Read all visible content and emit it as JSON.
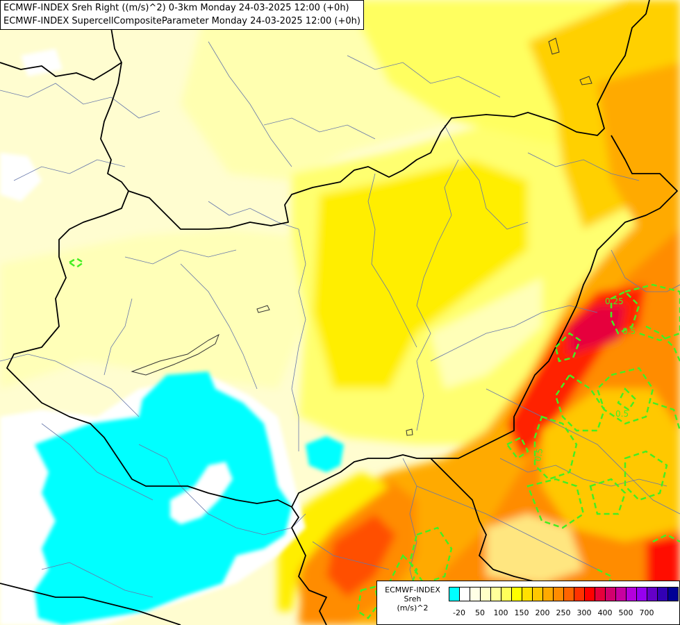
{
  "header": {
    "line1": "ECMWF-INDEX Sreh Right ((m/s)^2) 0-3km Monday 24-03-2025 12:00 (+0h)",
    "line2": "ECMWF-INDEX SupercellCompositeParameter Monday 24-03-2025 12:00 (+0h)"
  },
  "legend": {
    "title1": "ECMWF-INDEX",
    "title2": "Sreh",
    "title3": "(m/s)^2",
    "colors": [
      "#00ffff",
      "#ffffff",
      "#ffffe6",
      "#ffffc8",
      "#ffff9a",
      "#ffff5a",
      "#ffff00",
      "#ffe100",
      "#ffc800",
      "#ffaa00",
      "#ff8c00",
      "#ff6400",
      "#ff3200",
      "#ff0000",
      "#e6003c",
      "#d2006e",
      "#c800a0",
      "#b400dc",
      "#9600f0",
      "#6400c8",
      "#3200b4",
      "#000096"
    ],
    "ticks": [
      "-20",
      "50",
      "100",
      "150",
      "200",
      "250",
      "300",
      "400",
      "500",
      "700"
    ]
  },
  "contours": {
    "labels": [
      "0.25",
      "0.5",
      "0.5",
      "0.5"
    ]
  },
  "colors": {
    "contour": "#44ee22",
    "border": "#000000",
    "river": "#6677aa"
  }
}
